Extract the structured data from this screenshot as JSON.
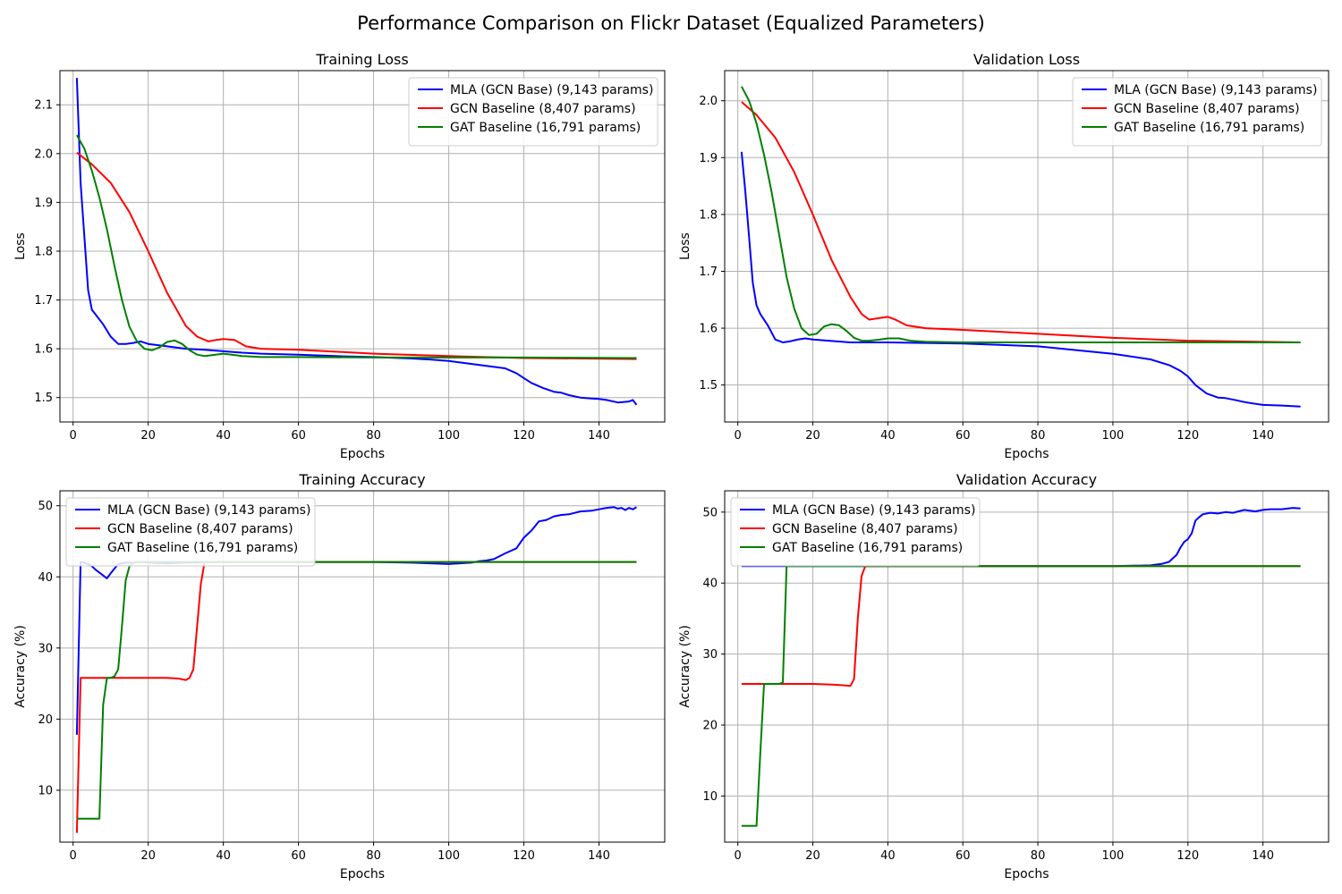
{
  "figure": {
    "suptitle": "Performance Comparison on Flickr Dataset (Equalized Parameters)"
  },
  "colors": {
    "mla": "#0000ff",
    "gcn": "#ff0000",
    "gat": "#008000",
    "grid": "#b0b0b0"
  },
  "chart_data": [
    {
      "type": "line",
      "title": "Training Loss",
      "xlabel": "Epochs",
      "ylabel": "Loss",
      "xlim": [
        -3.5,
        157.5
      ],
      "ylim": [
        1.45,
        2.17
      ],
      "xticks": [
        0,
        20,
        40,
        60,
        80,
        100,
        120,
        140
      ],
      "yticks": [
        1.5,
        1.6,
        1.7,
        1.8,
        1.9,
        2.0,
        2.1
      ],
      "ytick_labels": [
        "1.5",
        "1.6",
        "1.7",
        "1.8",
        "1.9",
        "2.0",
        "2.1"
      ],
      "grid": true,
      "legend_position": "top-right",
      "series": [
        {
          "name": "MLA (GCN Base) (9,143 params)",
          "color": "#0000ff",
          "x": [
            1,
            2,
            3,
            4,
            5,
            6,
            8,
            10,
            12,
            14,
            16,
            18,
            20,
            25,
            30,
            35,
            40,
            45,
            50,
            60,
            70,
            80,
            90,
            95,
            100,
            105,
            110,
            115,
            118,
            120,
            122,
            125,
            128,
            130,
            132,
            135,
            138,
            140,
            142,
            145,
            148,
            149,
            150
          ],
          "y": [
            2.155,
            1.94,
            1.83,
            1.72,
            1.68,
            1.67,
            1.65,
            1.625,
            1.61,
            1.61,
            1.612,
            1.615,
            1.61,
            1.605,
            1.6,
            1.598,
            1.595,
            1.592,
            1.59,
            1.588,
            1.585,
            1.583,
            1.58,
            1.578,
            1.575,
            1.57,
            1.565,
            1.56,
            1.55,
            1.54,
            1.53,
            1.52,
            1.512,
            1.51,
            1.505,
            1.5,
            1.498,
            1.497,
            1.495,
            1.49,
            1.492,
            1.495,
            1.485
          ]
        },
        {
          "name": "GCN Baseline (8,407 params)",
          "color": "#ff0000",
          "x": [
            1,
            5,
            10,
            15,
            20,
            25,
            30,
            33,
            36,
            38,
            40,
            43,
            46,
            50,
            60,
            80,
            100,
            120,
            150
          ],
          "y": [
            2.002,
            1.978,
            1.94,
            1.88,
            1.8,
            1.715,
            1.647,
            1.625,
            1.615,
            1.618,
            1.62,
            1.618,
            1.605,
            1.6,
            1.598,
            1.59,
            1.585,
            1.581,
            1.579
          ]
        },
        {
          "name": "GAT Baseline (16,791 params)",
          "color": "#008000",
          "x": [
            1,
            3,
            5,
            7,
            9,
            11,
            13,
            15,
            17,
            19,
            21,
            23,
            25,
            27,
            29,
            31,
            33,
            35,
            37,
            40,
            45,
            50,
            60,
            80,
            100,
            120,
            150
          ],
          "y": [
            2.038,
            2.01,
            1.965,
            1.91,
            1.845,
            1.77,
            1.7,
            1.645,
            1.615,
            1.6,
            1.597,
            1.603,
            1.614,
            1.617,
            1.61,
            1.597,
            1.588,
            1.585,
            1.587,
            1.59,
            1.585,
            1.583,
            1.583,
            1.582,
            1.582,
            1.582,
            1.581
          ]
        }
      ]
    },
    {
      "type": "line",
      "title": "Validation Loss",
      "xlabel": "Epochs",
      "ylabel": "Loss",
      "xlim": [
        -3.5,
        157.5
      ],
      "ylim": [
        1.435,
        2.053
      ],
      "xticks": [
        0,
        20,
        40,
        60,
        80,
        100,
        120,
        140
      ],
      "yticks": [
        1.5,
        1.6,
        1.7,
        1.8,
        1.9,
        2.0
      ],
      "ytick_labels": [
        "1.5",
        "1.6",
        "1.7",
        "1.8",
        "1.9",
        "2.0"
      ],
      "grid": true,
      "legend_position": "top-right",
      "series": [
        {
          "name": "MLA (GCN Base) (9,143 params)",
          "color": "#0000ff",
          "x": [
            1,
            2,
            3,
            4,
            5,
            6,
            8,
            10,
            12,
            14,
            16,
            18,
            20,
            30,
            40,
            60,
            80,
            100,
            110,
            115,
            118,
            120,
            122,
            125,
            128,
            130,
            133,
            135,
            138,
            140,
            145,
            150
          ],
          "y": [
            1.91,
            1.84,
            1.76,
            1.68,
            1.64,
            1.625,
            1.605,
            1.58,
            1.575,
            1.577,
            1.58,
            1.582,
            1.58,
            1.575,
            1.575,
            1.573,
            1.568,
            1.555,
            1.545,
            1.535,
            1.525,
            1.515,
            1.5,
            1.485,
            1.478,
            1.477,
            1.473,
            1.47,
            1.467,
            1.465,
            1.464,
            1.462
          ]
        },
        {
          "name": "GCN Baseline (8,407 params)",
          "color": "#ff0000",
          "x": [
            1,
            5,
            10,
            15,
            20,
            25,
            30,
            33,
            35,
            38,
            40,
            42,
            45,
            50,
            60,
            80,
            100,
            120,
            150
          ],
          "y": [
            1.998,
            1.975,
            1.935,
            1.875,
            1.8,
            1.72,
            1.655,
            1.625,
            1.615,
            1.618,
            1.62,
            1.615,
            1.605,
            1.6,
            1.597,
            1.59,
            1.583,
            1.578,
            1.575
          ]
        },
        {
          "name": "GAT Baseline (16,791 params)",
          "color": "#008000",
          "x": [
            1,
            3,
            5,
            7,
            9,
            11,
            13,
            15,
            17,
            19,
            21,
            23,
            25,
            27,
            29,
            31,
            33,
            35,
            38,
            40,
            43,
            46,
            50,
            60,
            80,
            100,
            120,
            150
          ],
          "y": [
            2.025,
            2.0,
            1.96,
            1.905,
            1.84,
            1.765,
            1.69,
            1.635,
            1.6,
            1.588,
            1.59,
            1.603,
            1.607,
            1.605,
            1.595,
            1.583,
            1.578,
            1.578,
            1.58,
            1.582,
            1.582,
            1.578,
            1.576,
            1.575,
            1.575,
            1.575,
            1.575,
            1.575
          ]
        }
      ]
    },
    {
      "type": "line",
      "title": "Training Accuracy",
      "xlabel": "Epochs",
      "ylabel": "Accuracy (%)",
      "xlim": [
        -3.5,
        157.5
      ],
      "ylim": [
        2.7,
        52.1
      ],
      "xticks": [
        0,
        20,
        40,
        60,
        80,
        100,
        120,
        140
      ],
      "yticks": [
        10,
        20,
        30,
        40,
        50
      ],
      "ytick_labels": [
        "10",
        "20",
        "30",
        "40",
        "50"
      ],
      "grid": true,
      "legend_position": "top-left",
      "series": [
        {
          "name": "MLA (GCN Base) (9,143 params)",
          "color": "#0000ff",
          "x": [
            1,
            2,
            3,
            4,
            5,
            6,
            8,
            9,
            10,
            12,
            14,
            16,
            18,
            20,
            25,
            30,
            40,
            60,
            80,
            90,
            95,
            100,
            103,
            106,
            108,
            110,
            112,
            115,
            118,
            120,
            122,
            124,
            126,
            128,
            130,
            132,
            135,
            138,
            140,
            142,
            144,
            145,
            146,
            147,
            148,
            149,
            150
          ],
          "y": [
            17.8,
            42.1,
            42.0,
            41.8,
            41.5,
            41.0,
            40.2,
            39.8,
            40.5,
            41.8,
            42.0,
            42.0,
            42.1,
            42.0,
            41.9,
            42.0,
            42.1,
            42.1,
            42.1,
            42.0,
            41.9,
            41.8,
            41.9,
            42.0,
            42.2,
            42.3,
            42.5,
            43.3,
            44.0,
            45.5,
            46.5,
            47.8,
            48.0,
            48.5,
            48.7,
            48.8,
            49.2,
            49.3,
            49.5,
            49.7,
            49.8,
            49.6,
            49.7,
            49.4,
            49.7,
            49.5,
            49.8
          ]
        },
        {
          "name": "GCN Baseline (8,407 params)",
          "color": "#ff0000",
          "x": [
            1,
            2,
            3,
            10,
            20,
            25,
            28,
            30,
            31,
            32,
            33,
            34,
            35,
            40,
            60,
            100,
            150
          ],
          "y": [
            4.0,
            25.8,
            25.8,
            25.8,
            25.8,
            25.8,
            25.7,
            25.5,
            25.8,
            27.0,
            33.0,
            39.0,
            42.1,
            42.1,
            42.1,
            42.1,
            42.1
          ]
        },
        {
          "name": "GAT Baseline (16,791 params)",
          "color": "#008000",
          "x": [
            1,
            2,
            5,
            7,
            8,
            9,
            10,
            11,
            12,
            13,
            14,
            15,
            16,
            18,
            20,
            25,
            40,
            60,
            100,
            150
          ],
          "y": [
            6.0,
            6.0,
            6.0,
            6.0,
            22.0,
            25.8,
            25.8,
            26.0,
            27.0,
            33.0,
            39.5,
            41.5,
            42.0,
            42.1,
            42.1,
            42.1,
            42.1,
            42.1,
            42.1,
            42.1
          ]
        }
      ]
    },
    {
      "type": "line",
      "title": "Validation Accuracy",
      "xlabel": "Epochs",
      "ylabel": "Accuracy (%)",
      "xlim": [
        -3.5,
        157.5
      ],
      "ylim": [
        3.5,
        53.0
      ],
      "xticks": [
        0,
        20,
        40,
        60,
        80,
        100,
        120,
        140
      ],
      "yticks": [
        10,
        20,
        30,
        40,
        50
      ],
      "ytick_labels": [
        "10",
        "20",
        "30",
        "40",
        "50"
      ],
      "grid": true,
      "legend_position": "top-left",
      "series": [
        {
          "name": "MLA (GCN Base) (9,143 params)",
          "color": "#0000ff",
          "x": [
            1,
            20,
            40,
            60,
            80,
            100,
            110,
            113,
            115,
            117,
            118,
            119,
            120,
            121,
            122,
            123,
            124,
            126,
            128,
            130,
            132,
            135,
            138,
            140,
            142,
            145,
            148,
            150
          ],
          "y": [
            42.4,
            42.4,
            42.4,
            42.4,
            42.4,
            42.4,
            42.5,
            42.7,
            43.0,
            44.0,
            45.0,
            45.8,
            46.2,
            47.0,
            48.8,
            49.3,
            49.7,
            49.9,
            49.8,
            50.0,
            49.9,
            50.3,
            50.1,
            50.3,
            50.4,
            50.4,
            50.6,
            50.5
          ]
        },
        {
          "name": "GCN Baseline (8,407 params)",
          "color": "#ff0000",
          "x": [
            1,
            10,
            20,
            25,
            28,
            30,
            31,
            32,
            33,
            34,
            40,
            60,
            100,
            150
          ],
          "y": [
            25.8,
            25.8,
            25.8,
            25.7,
            25.6,
            25.5,
            26.5,
            35.0,
            41.0,
            42.4,
            42.4,
            42.4,
            42.4,
            42.4
          ]
        },
        {
          "name": "GAT Baseline (16,791 params)",
          "color": "#008000",
          "x": [
            1,
            5,
            6,
            7,
            10,
            11,
            12,
            13,
            14,
            20,
            40,
            60,
            100,
            150
          ],
          "y": [
            5.8,
            5.8,
            16.0,
            25.8,
            25.8,
            25.8,
            26.0,
            42.4,
            42.4,
            42.4,
            42.4,
            42.4,
            42.4,
            42.4
          ]
        }
      ]
    }
  ]
}
